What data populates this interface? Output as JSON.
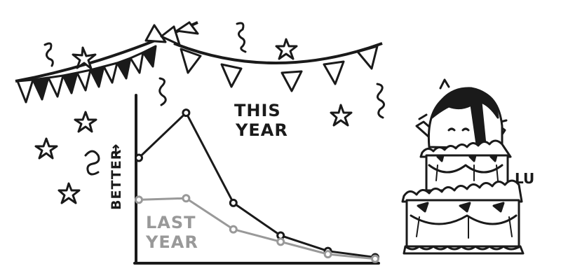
{
  "chart_data": {
    "type": "line",
    "title": "",
    "xlabel": "",
    "ylabel": "BETTER",
    "ylabel_arrow": "→",
    "ylim": [
      0,
      100
    ],
    "xlim": [
      0,
      5
    ],
    "grid": false,
    "x": [
      0,
      1,
      2,
      3,
      4,
      5
    ],
    "series": [
      {
        "name": "THIS YEAR",
        "label_lines": [
          "THIS",
          "YEAR"
        ],
        "color": "#1a1a1a",
        "values": [
          66,
          95,
          37,
          16,
          6,
          2
        ]
      },
      {
        "name": "LAST YEAR",
        "label_lines": [
          "LAST",
          "YEAR"
        ],
        "color": "#999999",
        "values": [
          39,
          40,
          20,
          12,
          4,
          1
        ]
      }
    ]
  },
  "signature": "LU",
  "colors": {
    "ink": "#1a1a1a",
    "gray": "#999999",
    "paper": "#ffffff"
  }
}
